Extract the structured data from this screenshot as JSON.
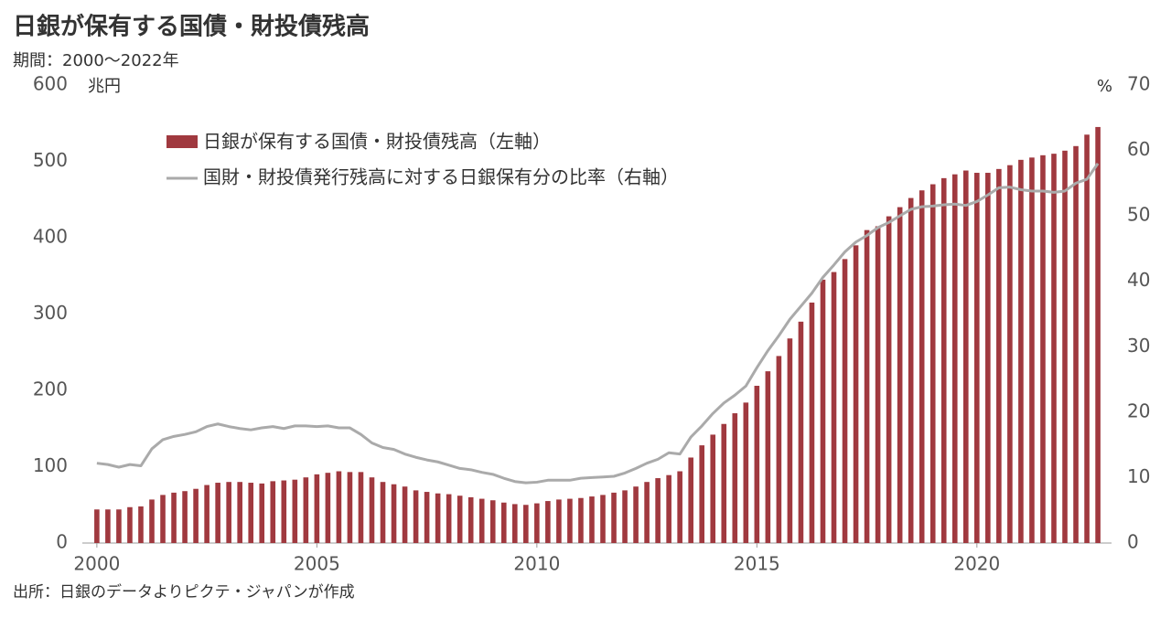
{
  "chart_data": {
    "type": "combo",
    "title": "日銀が保有する国債・財投債残高",
    "subtitle": "期間：2000～2022年",
    "source": "出所：日銀のデータよりピクテ・ジャパンが作成",
    "y_unit": "兆円",
    "y2_unit": "%",
    "x": [
      2000,
      2000.25,
      2000.5,
      2000.75,
      2001,
      2001.25,
      2001.5,
      2001.75,
      2002,
      2002.25,
      2002.5,
      2002.75,
      2003,
      2003.25,
      2003.5,
      2003.75,
      2004,
      2004.25,
      2004.5,
      2004.75,
      2005,
      2005.25,
      2005.5,
      2005.75,
      2006,
      2006.25,
      2006.5,
      2006.75,
      2007,
      2007.25,
      2007.5,
      2007.75,
      2008,
      2008.25,
      2008.5,
      2008.75,
      2009,
      2009.25,
      2009.5,
      2009.75,
      2010,
      2010.25,
      2010.5,
      2010.75,
      2011,
      2011.25,
      2011.5,
      2011.75,
      2012,
      2012.25,
      2012.5,
      2012.75,
      2013,
      2013.25,
      2013.5,
      2013.75,
      2014,
      2014.25,
      2014.5,
      2014.75,
      2015,
      2015.25,
      2015.5,
      2015.75,
      2016,
      2016.25,
      2016.5,
      2016.75,
      2017,
      2017.25,
      2017.5,
      2017.75,
      2018,
      2018.25,
      2018.5,
      2018.75,
      2019,
      2019.25,
      2019.5,
      2019.75,
      2020,
      2020.25,
      2020.5,
      2020.75,
      2021,
      2021.25,
      2021.5,
      2021.75,
      2022,
      2022.25,
      2022.5,
      2022.75
    ],
    "series": [
      {
        "name": "日銀が保有する国債・財投債残高（左軸）",
        "type": "bar",
        "axis": "y",
        "color": "#a0393f",
        "values": [
          44,
          44,
          44,
          47,
          48,
          57,
          63,
          66,
          68,
          71,
          76,
          79,
          80,
          80,
          79,
          78,
          81,
          82,
          83,
          86,
          90,
          92,
          94,
          93,
          93,
          86,
          80,
          77,
          74,
          69,
          67,
          65,
          64,
          62,
          60,
          58,
          56,
          53,
          51,
          50,
          52,
          55,
          57,
          58,
          59,
          61,
          63,
          66,
          69,
          74,
          80,
          85,
          89,
          94,
          112,
          128,
          142,
          156,
          170,
          184,
          206,
          225,
          245,
          268,
          290,
          315,
          345,
          355,
          372,
          390,
          410,
          415,
          428,
          440,
          452,
          462,
          470,
          478,
          483,
          488,
          485,
          485,
          490,
          495,
          502,
          505,
          508,
          510,
          514,
          520,
          535,
          545
        ]
      },
      {
        "name": "国財・財投債発行残高に対する日銀保有分の比率（右軸）",
        "type": "line",
        "axis": "y2",
        "color": "#aaaaaa",
        "values": [
          12.2,
          12.0,
          11.6,
          12.0,
          11.8,
          14.4,
          15.8,
          16.3,
          16.6,
          17.0,
          17.8,
          18.2,
          17.8,
          17.5,
          17.3,
          17.6,
          17.8,
          17.5,
          17.9,
          17.9,
          17.8,
          17.9,
          17.6,
          17.6,
          16.6,
          15.3,
          14.6,
          14.3,
          13.6,
          13.1,
          12.7,
          12.4,
          11.9,
          11.4,
          11.2,
          10.8,
          10.5,
          9.9,
          9.4,
          9.2,
          9.3,
          9.6,
          9.6,
          9.6,
          9.9,
          10.0,
          10.1,
          10.2,
          10.7,
          11.4,
          12.2,
          12.8,
          13.8,
          13.6,
          16.2,
          17.9,
          19.8,
          21.4,
          22.6,
          24.0,
          26.8,
          29.4,
          31.7,
          34.2,
          36.2,
          38.2,
          40.6,
          42.5,
          44.5,
          46.0,
          47.0,
          48.2,
          49.0,
          50.0,
          51.0,
          51.4,
          51.5,
          51.7,
          51.8,
          51.6,
          52.2,
          53.2,
          54.3,
          54.4,
          54.0,
          53.8,
          53.8,
          53.6,
          53.8,
          55.0,
          55.6,
          58.0
        ]
      }
    ],
    "xlim": [
      1999.67,
      2023.06
    ],
    "xticks": [
      2000,
      2005,
      2010,
      2015,
      2020
    ],
    "ylim": [
      0,
      600
    ],
    "yticks": [
      0,
      100,
      200,
      300,
      400,
      500,
      600
    ],
    "y2lim": [
      0,
      70
    ],
    "y2ticks": [
      0,
      10,
      20,
      30,
      40,
      50,
      60,
      70
    ],
    "grid": false
  }
}
